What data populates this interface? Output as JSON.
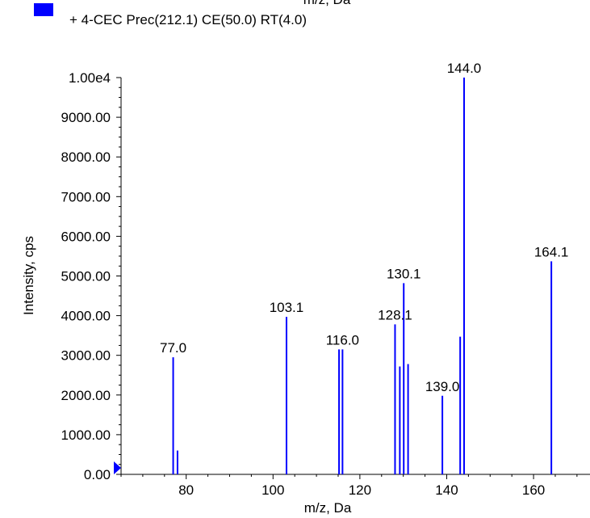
{
  "chart_data": {
    "type": "bar",
    "legend": {
      "label": "+ 4-CEC Prec(212.1) CE(50.0) RT(4.0)",
      "color": "#0000ff",
      "placement": "top-left"
    },
    "top_cutoff_text": "m/z, Da",
    "xlabel": "m/z, Da",
    "ylabel": "Intensity, cps",
    "xlim": [
      65,
      173
    ],
    "ylim": [
      0,
      10000
    ],
    "x_ticks": [
      80,
      100,
      120,
      140,
      160
    ],
    "x_tick_labels": [
      "80",
      "100",
      "120",
      "140",
      "160"
    ],
    "y_ticks": [
      0,
      1000,
      2000,
      3000,
      4000,
      5000,
      6000,
      7000,
      8000,
      9000,
      10000
    ],
    "y_tick_labels": [
      "0.00",
      "1000.00",
      "2000.00",
      "3000.00",
      "4000.00",
      "5000.00",
      "6000.00",
      "7000.00",
      "8000.00",
      "9000.00",
      "1.00e4"
    ],
    "series_color": "#0000ff",
    "peaks": [
      {
        "x": 77.0,
        "y": 2950
      },
      {
        "x": 78.0,
        "y": 600
      },
      {
        "x": 103.1,
        "y": 3970
      },
      {
        "x": 115.2,
        "y": 3150
      },
      {
        "x": 116.0,
        "y": 3150
      },
      {
        "x": 128.1,
        "y": 3780
      },
      {
        "x": 129.2,
        "y": 2720
      },
      {
        "x": 130.1,
        "y": 4820
      },
      {
        "x": 131.1,
        "y": 2780
      },
      {
        "x": 139.0,
        "y": 1980
      },
      {
        "x": 143.1,
        "y": 3470
      },
      {
        "x": 144.0,
        "y": 10000
      },
      {
        "x": 164.1,
        "y": 5370
      }
    ],
    "peak_labels": [
      {
        "text": "77.0",
        "x": 77.0,
        "y": 2950
      },
      {
        "text": "103.1",
        "x": 103.1,
        "y": 3970
      },
      {
        "text": "116.0",
        "x": 116.0,
        "y": 3150
      },
      {
        "text": "128.1",
        "x": 128.1,
        "y": 3780
      },
      {
        "text": "130.1",
        "x": 130.1,
        "y": 4820
      },
      {
        "text": "139.0",
        "x": 139.0,
        "y": 1980
      },
      {
        "text": "144.0",
        "x": 144.0,
        "y": 10000
      },
      {
        "text": "164.1",
        "x": 164.1,
        "y": 5370
      }
    ]
  }
}
